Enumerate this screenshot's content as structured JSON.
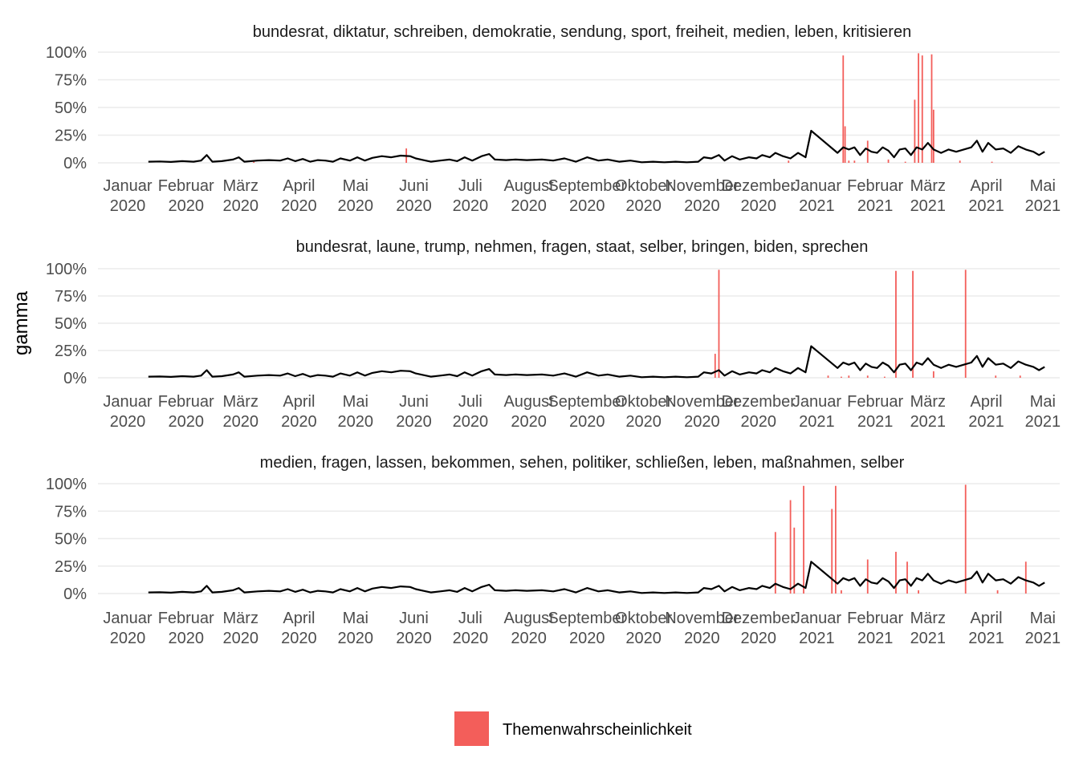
{
  "chart_data": {
    "type": "faceted bar+line",
    "ylabel": "gamma",
    "yticks": [
      "0%",
      "25%",
      "50%",
      "75%",
      "100%"
    ],
    "ylim": [
      0,
      1
    ],
    "xlim": [
      "2020-01-01",
      "2021-05-10"
    ],
    "xticks": [
      {
        "date": "2020-01-01",
        "label": [
          "Januar",
          "2020"
        ]
      },
      {
        "date": "2020-02-01",
        "label": [
          "Februar",
          "2020"
        ]
      },
      {
        "date": "2020-03-01",
        "label": [
          "März",
          "2020"
        ]
      },
      {
        "date": "2020-04-01",
        "label": [
          "April",
          "2020"
        ]
      },
      {
        "date": "2020-05-01",
        "label": [
          "Mai",
          "2020"
        ]
      },
      {
        "date": "2020-06-01",
        "label": [
          "Juni",
          "2020"
        ]
      },
      {
        "date": "2020-07-01",
        "label": [
          "Juli",
          "2020"
        ]
      },
      {
        "date": "2020-08-01",
        "label": [
          "August",
          "2020"
        ]
      },
      {
        "date": "2020-09-01",
        "label": [
          "September",
          "2020"
        ]
      },
      {
        "date": "2020-10-01",
        "label": [
          "Oktober",
          "2020"
        ]
      },
      {
        "date": "2020-11-01",
        "label": [
          "November",
          "2020"
        ]
      },
      {
        "date": "2020-12-01",
        "label": [
          "Dezember",
          "2020"
        ]
      },
      {
        "date": "2021-01-01",
        "label": [
          "Januar",
          "2021"
        ]
      },
      {
        "date": "2021-02-01",
        "label": [
          "Februar",
          "2021"
        ]
      },
      {
        "date": "2021-03-01",
        "label": [
          "März",
          "2021"
        ]
      },
      {
        "date": "2021-04-01",
        "label": [
          "April",
          "2021"
        ]
      },
      {
        "date": "2021-05-01",
        "label": [
          "Mai",
          "2021"
        ]
      }
    ],
    "legend": {
      "position": "bottom",
      "label": "Themenwahrscheinlichkeit",
      "color": "#f35e5a"
    },
    "bar_color": "#f35e5a",
    "line_color": "#000000",
    "line": [
      [
        "2020-01-12",
        0.01
      ],
      [
        "2020-01-18",
        0.012
      ],
      [
        "2020-01-24",
        0.008
      ],
      [
        "2020-01-30",
        0.015
      ],
      [
        "2020-02-05",
        0.01
      ],
      [
        "2020-02-09",
        0.02
      ],
      [
        "2020-02-12",
        0.07
      ],
      [
        "2020-02-15",
        0.01
      ],
      [
        "2020-02-20",
        0.015
      ],
      [
        "2020-02-26",
        0.03
      ],
      [
        "2020-02-29",
        0.05
      ],
      [
        "2020-03-03",
        0.01
      ],
      [
        "2020-03-10",
        0.02
      ],
      [
        "2020-03-16",
        0.025
      ],
      [
        "2020-03-22",
        0.02
      ],
      [
        "2020-03-26",
        0.04
      ],
      [
        "2020-03-30",
        0.015
      ],
      [
        "2020-04-03",
        0.035
      ],
      [
        "2020-04-07",
        0.01
      ],
      [
        "2020-04-11",
        0.025
      ],
      [
        "2020-04-15",
        0.02
      ],
      [
        "2020-04-19",
        0.01
      ],
      [
        "2020-04-23",
        0.04
      ],
      [
        "2020-04-28",
        0.02
      ],
      [
        "2020-05-02",
        0.05
      ],
      [
        "2020-05-06",
        0.02
      ],
      [
        "2020-05-10",
        0.045
      ],
      [
        "2020-05-15",
        0.06
      ],
      [
        "2020-05-20",
        0.05
      ],
      [
        "2020-05-25",
        0.065
      ],
      [
        "2020-05-30",
        0.06
      ],
      [
        "2020-06-02",
        0.04
      ],
      [
        "2020-06-06",
        0.025
      ],
      [
        "2020-06-10",
        0.01
      ],
      [
        "2020-06-15",
        0.02
      ],
      [
        "2020-06-20",
        0.03
      ],
      [
        "2020-06-24",
        0.015
      ],
      [
        "2020-06-28",
        0.05
      ],
      [
        "2020-07-02",
        0.02
      ],
      [
        "2020-07-07",
        0.06
      ],
      [
        "2020-07-11",
        0.08
      ],
      [
        "2020-07-14",
        0.03
      ],
      [
        "2020-07-20",
        0.025
      ],
      [
        "2020-07-25",
        0.03
      ],
      [
        "2020-07-31",
        0.025
      ],
      [
        "2020-08-08",
        0.03
      ],
      [
        "2020-08-14",
        0.02
      ],
      [
        "2020-08-20",
        0.04
      ],
      [
        "2020-08-26",
        0.01
      ],
      [
        "2020-09-01",
        0.05
      ],
      [
        "2020-09-07",
        0.02
      ],
      [
        "2020-09-12",
        0.03
      ],
      [
        "2020-09-18",
        0.01
      ],
      [
        "2020-09-24",
        0.02
      ],
      [
        "2020-09-30",
        0.005
      ],
      [
        "2020-10-06",
        0.01
      ],
      [
        "2020-10-12",
        0.005
      ],
      [
        "2020-10-18",
        0.01
      ],
      [
        "2020-10-24",
        0.005
      ],
      [
        "2020-10-30",
        0.01
      ],
      [
        "2020-11-02",
        0.05
      ],
      [
        "2020-11-06",
        0.04
      ],
      [
        "2020-11-10",
        0.07
      ],
      [
        "2020-11-13",
        0.02
      ],
      [
        "2020-11-17",
        0.06
      ],
      [
        "2020-11-21",
        0.03
      ],
      [
        "2020-11-26",
        0.05
      ],
      [
        "2020-11-30",
        0.04
      ],
      [
        "2020-12-03",
        0.07
      ],
      [
        "2020-12-07",
        0.05
      ],
      [
        "2020-12-10",
        0.09
      ],
      [
        "2020-12-14",
        0.06
      ],
      [
        "2020-12-18",
        0.04
      ],
      [
        "2020-12-22",
        0.09
      ],
      [
        "2020-12-26",
        0.05
      ],
      [
        "2020-12-29",
        0.29
      ],
      [
        "2021-01-12",
        0.09
      ],
      [
        "2021-01-15",
        0.14
      ],
      [
        "2021-01-18",
        0.12
      ],
      [
        "2021-01-21",
        0.14
      ],
      [
        "2021-01-24",
        0.07
      ],
      [
        "2021-01-27",
        0.13
      ],
      [
        "2021-01-30",
        0.1
      ],
      [
        "2021-02-02",
        0.09
      ],
      [
        "2021-02-05",
        0.14
      ],
      [
        "2021-02-08",
        0.11
      ],
      [
        "2021-02-11",
        0.05
      ],
      [
        "2021-02-14",
        0.12
      ],
      [
        "2021-02-17",
        0.13
      ],
      [
        "2021-02-20",
        0.07
      ],
      [
        "2021-02-23",
        0.14
      ],
      [
        "2021-02-26",
        0.12
      ],
      [
        "2021-03-01",
        0.18
      ],
      [
        "2021-03-04",
        0.12
      ],
      [
        "2021-03-08",
        0.09
      ],
      [
        "2021-03-12",
        0.12
      ],
      [
        "2021-03-16",
        0.1
      ],
      [
        "2021-03-20",
        0.12
      ],
      [
        "2021-03-24",
        0.14
      ],
      [
        "2021-03-27",
        0.2
      ],
      [
        "2021-03-30",
        0.1
      ],
      [
        "2021-04-02",
        0.18
      ],
      [
        "2021-04-06",
        0.12
      ],
      [
        "2021-04-10",
        0.13
      ],
      [
        "2021-04-14",
        0.09
      ],
      [
        "2021-04-18",
        0.15
      ],
      [
        "2021-04-22",
        0.12
      ],
      [
        "2021-04-26",
        0.1
      ],
      [
        "2021-04-29",
        0.07
      ],
      [
        "2021-05-02",
        0.1
      ]
    ],
    "facets": [
      {
        "title": "bundesrat, diktatur, schreiben, demokratie, sendung, sport, freiheit, medien, leben, kritisieren",
        "bars": [
          [
            "2020-03-08",
            0.01
          ],
          [
            "2020-05-28",
            0.13
          ],
          [
            "2020-12-17",
            0.02
          ],
          [
            "2021-01-15",
            0.97
          ],
          [
            "2021-01-16",
            0.33
          ],
          [
            "2021-01-18",
            0.02
          ],
          [
            "2021-01-21",
            0.02
          ],
          [
            "2021-01-28",
            0.2
          ],
          [
            "2021-02-08",
            0.03
          ],
          [
            "2021-02-17",
            0.01
          ],
          [
            "2021-02-22",
            0.57
          ],
          [
            "2021-02-24",
            0.99
          ],
          [
            "2021-02-26",
            0.97
          ],
          [
            "2021-03-03",
            0.98
          ],
          [
            "2021-03-04",
            0.48
          ],
          [
            "2021-03-18",
            0.02
          ],
          [
            "2021-04-04",
            0.01
          ]
        ]
      },
      {
        "title": "bundesrat, laune, trump, nehmen, fragen, staat, selber, bringen, biden, sprechen",
        "bars": [
          [
            "2020-11-08",
            0.22
          ],
          [
            "2020-11-10",
            0.99
          ],
          [
            "2021-01-07",
            0.02
          ],
          [
            "2021-01-14",
            0.01
          ],
          [
            "2021-01-18",
            0.02
          ],
          [
            "2021-01-28",
            0.02
          ],
          [
            "2021-02-06",
            0.01
          ],
          [
            "2021-02-12",
            0.98
          ],
          [
            "2021-02-21",
            0.98
          ],
          [
            "2021-03-04",
            0.06
          ],
          [
            "2021-03-21",
            0.99
          ],
          [
            "2021-04-06",
            0.02
          ],
          [
            "2021-04-19",
            0.02
          ]
        ]
      },
      {
        "title": "medien, fragen, lassen, bekommen, sehen, politiker, schließen, leben, maßnahmen, selber",
        "bars": [
          [
            "2020-12-10",
            0.56
          ],
          [
            "2020-12-18",
            0.85
          ],
          [
            "2020-12-20",
            0.6
          ],
          [
            "2020-12-25",
            0.98
          ],
          [
            "2021-01-09",
            0.77
          ],
          [
            "2021-01-11",
            0.98
          ],
          [
            "2021-01-14",
            0.03
          ],
          [
            "2021-01-28",
            0.31
          ],
          [
            "2021-02-12",
            0.38
          ],
          [
            "2021-02-18",
            0.29
          ],
          [
            "2021-02-24",
            0.03
          ],
          [
            "2021-03-21",
            0.99
          ],
          [
            "2021-04-07",
            0.03
          ],
          [
            "2021-04-22",
            0.29
          ]
        ]
      }
    ]
  }
}
